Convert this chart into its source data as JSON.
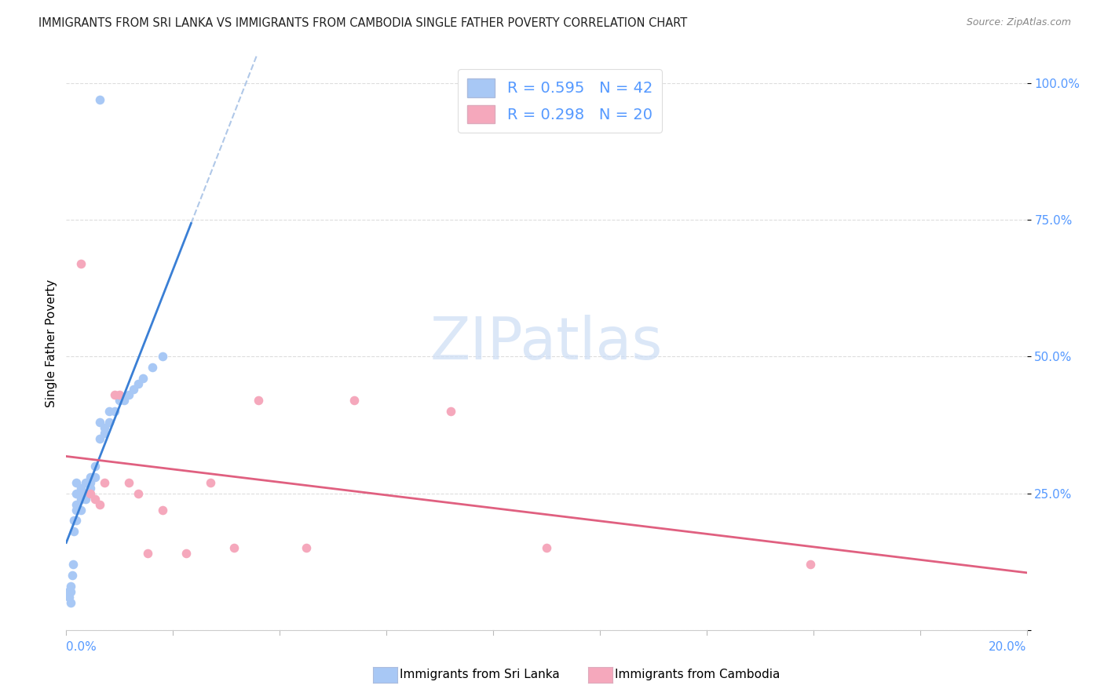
{
  "title": "IMMIGRANTS FROM SRI LANKA VS IMMIGRANTS FROM CAMBODIA SINGLE FATHER POVERTY CORRELATION CHART",
  "source": "Source: ZipAtlas.com",
  "ylabel": "Single Father Poverty",
  "sri_lanka_R": 0.595,
  "sri_lanka_N": 42,
  "cambodia_R": 0.298,
  "cambodia_N": 20,
  "sri_lanka_color": "#a8c8f5",
  "cambodia_color": "#f5a8bc",
  "sri_lanka_line_color": "#3a7fd5",
  "cambodia_line_color": "#e06080",
  "dash_color": "#b0c8e8",
  "background_color": "#ffffff",
  "grid_color": "#dddddd",
  "watermark_color": "#ccddf5",
  "title_color": "#222222",
  "source_color": "#888888",
  "ytick_color": "#5599ff",
  "xtick_color": "#5599ff",
  "xmin": 0.0,
  "xmax": 0.2,
  "ymin": 0.0,
  "ymax": 1.05,
  "sl_x": [
    0.0004,
    0.0006,
    0.001,
    0.001,
    0.001,
    0.0012,
    0.0014,
    0.0015,
    0.0015,
    0.002,
    0.002,
    0.002,
    0.002,
    0.002,
    0.003,
    0.003,
    0.003,
    0.003,
    0.004,
    0.004,
    0.004,
    0.005,
    0.005,
    0.005,
    0.006,
    0.006,
    0.007,
    0.007,
    0.008,
    0.008,
    0.009,
    0.009,
    0.01,
    0.011,
    0.012,
    0.013,
    0.014,
    0.015,
    0.016,
    0.018,
    0.02,
    0.007
  ],
  "sl_y": [
    0.07,
    0.06,
    0.05,
    0.07,
    0.08,
    0.1,
    0.12,
    0.18,
    0.2,
    0.2,
    0.22,
    0.23,
    0.25,
    0.27,
    0.22,
    0.24,
    0.25,
    0.26,
    0.24,
    0.25,
    0.27,
    0.26,
    0.27,
    0.28,
    0.28,
    0.3,
    0.35,
    0.38,
    0.36,
    0.37,
    0.38,
    0.4,
    0.4,
    0.42,
    0.42,
    0.43,
    0.44,
    0.45,
    0.46,
    0.48,
    0.5,
    0.97
  ],
  "cam_x": [
    0.003,
    0.005,
    0.006,
    0.007,
    0.008,
    0.01,
    0.011,
    0.013,
    0.015,
    0.017,
    0.02,
    0.025,
    0.03,
    0.035,
    0.04,
    0.05,
    0.06,
    0.08,
    0.1,
    0.155
  ],
  "cam_y": [
    0.67,
    0.25,
    0.24,
    0.23,
    0.27,
    0.43,
    0.43,
    0.27,
    0.25,
    0.14,
    0.22,
    0.14,
    0.27,
    0.15,
    0.42,
    0.15,
    0.42,
    0.4,
    0.15,
    0.12
  ],
  "sl_line_xstart": 0.0,
  "sl_line_xend": 0.026,
  "sl_dash_xstart": 0.026,
  "sl_dash_xend": 0.082,
  "cam_line_xstart": 0.0,
  "cam_line_xend": 0.2
}
